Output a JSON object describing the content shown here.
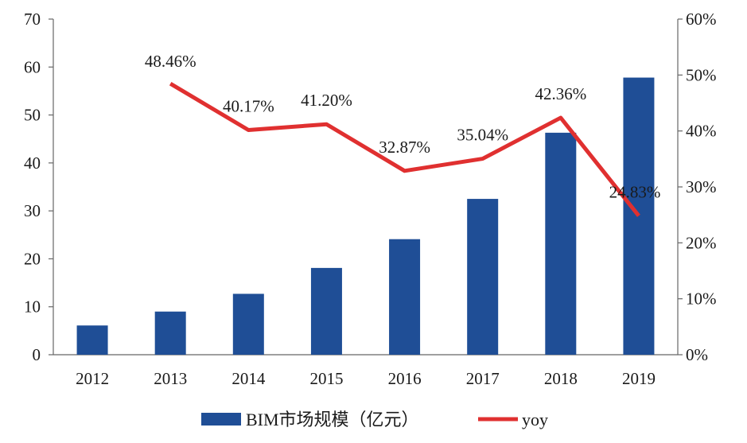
{
  "chart_data": {
    "type": "bar",
    "categories": [
      "2012",
      "2013",
      "2014",
      "2015",
      "2016",
      "2017",
      "2018",
      "2019"
    ],
    "series": [
      {
        "name": "BIM市场规模（亿元）",
        "type": "bar",
        "axis": "left",
        "color": "#1f4e96",
        "values": [
          6.1,
          9.0,
          12.7,
          18.1,
          24.1,
          32.5,
          46.3,
          57.8
        ]
      },
      {
        "name": "yoy",
        "type": "line",
        "axis": "right",
        "color": "#e03030",
        "values": [
          null,
          48.46,
          40.17,
          41.2,
          32.87,
          35.04,
          42.36,
          24.83
        ],
        "labels": [
          "",
          "48.46%",
          "40.17%",
          "41.20%",
          "32.87%",
          "35.04%",
          "42.36%",
          "24.83%"
        ]
      }
    ],
    "y_left": {
      "ylim": [
        0,
        70
      ],
      "ticks": [
        "0",
        "10",
        "20",
        "30",
        "40",
        "50",
        "60",
        "70"
      ],
      "tick_values": [
        0,
        10,
        20,
        30,
        40,
        50,
        60,
        70
      ]
    },
    "y_right": {
      "ylim": [
        0,
        60
      ],
      "ticks": [
        "0%",
        "10%",
        "20%",
        "30%",
        "40%",
        "50%",
        "60%"
      ],
      "tick_values": [
        0,
        10,
        20,
        30,
        40,
        50,
        60
      ]
    },
    "grid": false,
    "legend_position": "bottom"
  }
}
